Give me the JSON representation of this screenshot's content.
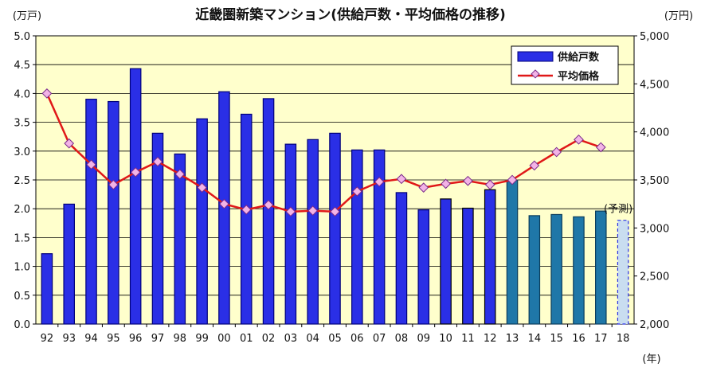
{
  "chart_data": {
    "type": "bar",
    "title": "近畿圏新築マンション(供給戸数・平均価格の推移)",
    "left_unit": "(万戸)",
    "right_unit": "(万円)",
    "x_unit": "(年)",
    "categories": [
      "92",
      "93",
      "94",
      "95",
      "96",
      "97",
      "98",
      "99",
      "00",
      "01",
      "02",
      "03",
      "04",
      "05",
      "06",
      "07",
      "08",
      "09",
      "10",
      "11",
      "12",
      "13",
      "14",
      "15",
      "16",
      "17",
      "18"
    ],
    "y_left": {
      "min": 0,
      "max": 5.0,
      "step": 0.5,
      "tick_labels": [
        "0.0",
        "0.5",
        "1.0",
        "1.5",
        "2.0",
        "2.5",
        "3.0",
        "3.5",
        "4.0",
        "4.5",
        "5.0"
      ]
    },
    "y_right": {
      "min": 2000,
      "max": 5000,
      "step": 500,
      "tick_labels": [
        "2,000",
        "2,500",
        "3,000",
        "3,500",
        "4,000",
        "4,500",
        "5,000"
      ]
    },
    "grid": true,
    "legend_position": "top-right",
    "series": [
      {
        "name": "供給戸数",
        "type": "bar",
        "axis": "left",
        "values": [
          1.22,
          2.08,
          3.9,
          3.86,
          4.43,
          3.31,
          2.95,
          3.56,
          4.03,
          3.64,
          3.91,
          3.12,
          3.2,
          3.31,
          3.02,
          3.02,
          2.28,
          1.98,
          2.17,
          2.01,
          2.33,
          2.49,
          1.88,
          1.9,
          1.86,
          1.96,
          1.8
        ],
        "colors": {
          "early": "#2a2fe6",
          "recent": "#1f77a8",
          "forecast": "#c9ddf0"
        }
      },
      {
        "name": "平均価格",
        "type": "line",
        "axis": "right",
        "values": [
          4400,
          3880,
          3660,
          3450,
          3580,
          3690,
          3560,
          3420,
          3250,
          3190,
          3240,
          3170,
          3180,
          3170,
          3380,
          3480,
          3510,
          3420,
          3460,
          3490,
          3450,
          3500,
          3650,
          3790,
          3920,
          3840,
          null
        ],
        "color": "#e01818",
        "marker_fill": "#f2b3e6"
      }
    ],
    "annotations": [
      {
        "text": "(予測)",
        "category": "18"
      }
    ]
  }
}
